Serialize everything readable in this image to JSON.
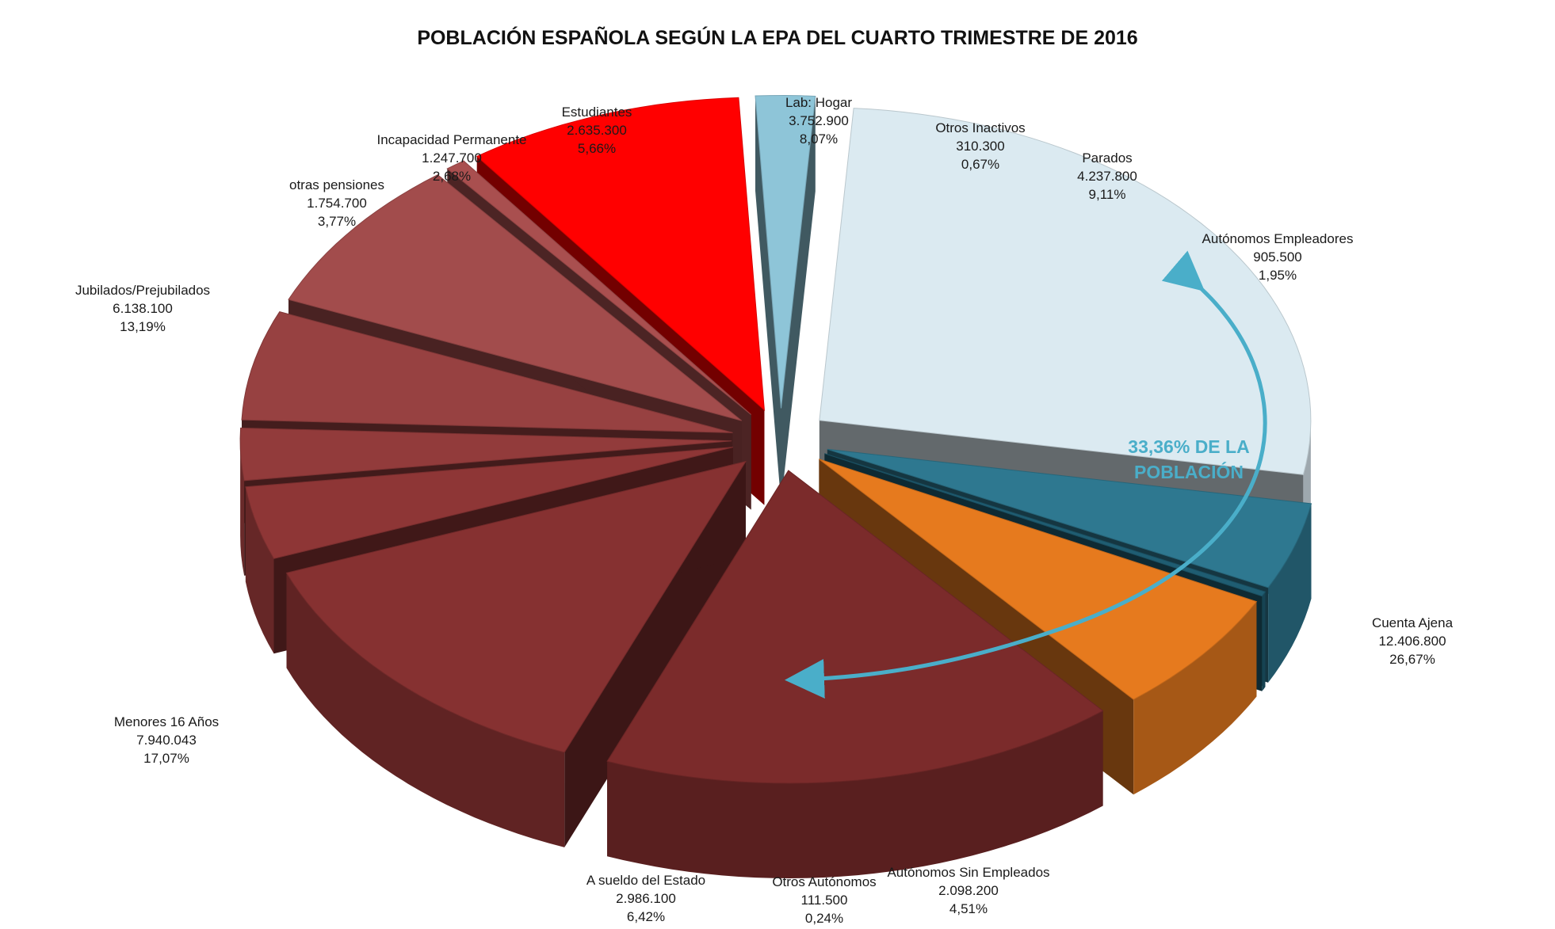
{
  "chart_data": {
    "type": "pie",
    "style": "3d-exploded",
    "title": "POBLACIÓN ESPAÑOLA SEGÚN LA EPA DEL CUARTO TRIMESTRE DE 2016",
    "slices": [
      {
        "label": "Cuenta Ajena",
        "value": 12406800,
        "value_text": "12.406.800",
        "percent": 26.67,
        "percent_text": "26,67%",
        "color": "#dbeaf1"
      },
      {
        "label": "Autónomos Sin Empleados",
        "value": 2098200,
        "value_text": "2.098.200",
        "percent": 4.51,
        "percent_text": "4,51%",
        "color": "#2e7890"
      },
      {
        "label": "Otros Autónomos",
        "value": 111500,
        "value_text": "111.500",
        "percent": 0.24,
        "percent_text": "0,24%",
        "color": "#1f5d72"
      },
      {
        "label": "A sueldo del Estado",
        "value": 2986100,
        "value_text": "2.986.100",
        "percent": 6.42,
        "percent_text": "6,42%",
        "color": "#e67a1e"
      },
      {
        "label": "Menores 16 Años",
        "value": 7940043,
        "value_text": "7.940.043",
        "percent": 17.07,
        "percent_text": "17,07%",
        "color": "#7b2b2b"
      },
      {
        "label": "Jubilados/Prejubilados",
        "value": 6138100,
        "value_text": "6.138.100",
        "percent": 13.19,
        "percent_text": "13,19%",
        "color": "#863131"
      },
      {
        "label": "otras pensiones",
        "value": 1754700,
        "value_text": "1.754.700",
        "percent": 3.77,
        "percent_text": "3,77%",
        "color": "#8e3636"
      },
      {
        "label": "Incapacidad Permanente",
        "value": 1247700,
        "value_text": "1.247.700",
        "percent": 2.68,
        "percent_text": "2,68%",
        "color": "#923b3b"
      },
      {
        "label": "Estudiantes",
        "value": 2635300,
        "value_text": "2.635.300",
        "percent": 5.66,
        "percent_text": "5,66%",
        "color": "#974141"
      },
      {
        "label": "Lab: Hogar",
        "value": 3752900,
        "value_text": "3.752.900",
        "percent": 8.07,
        "percent_text": "8,07%",
        "color": "#a24c4c"
      },
      {
        "label": "Otros Inactivos",
        "value": 310300,
        "value_text": "310.300",
        "percent": 0.67,
        "percent_text": "0,67%",
        "color": "#a94f4f"
      },
      {
        "label": "Parados",
        "value": 4237800,
        "value_text": "4.237.800",
        "percent": 9.11,
        "percent_text": "9,11%",
        "color": "#ff0000"
      },
      {
        "label": "Autónomos Empleadores",
        "value": 905500,
        "value_text": "905.500",
        "percent": 1.95,
        "percent_text": "1,95%",
        "color": "#8ec5d8"
      }
    ],
    "annotation": {
      "line1": "33,36% DE LA",
      "line2": "POBLACIÓN",
      "color": "#4aaec9"
    }
  }
}
